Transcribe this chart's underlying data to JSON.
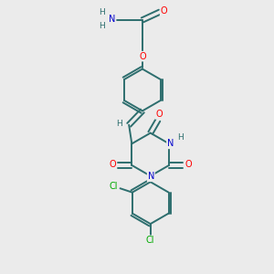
{
  "bg_color": "#ebebeb",
  "bond_color": "#2d6e6e",
  "bond_lw": 1.4,
  "atom_colors": {
    "O": "#ff0000",
    "N": "#0000cc",
    "Cl": "#00aa00",
    "H": "#2d6e6e",
    "C": "#2d6e6e"
  },
  "font_size": 7.0
}
